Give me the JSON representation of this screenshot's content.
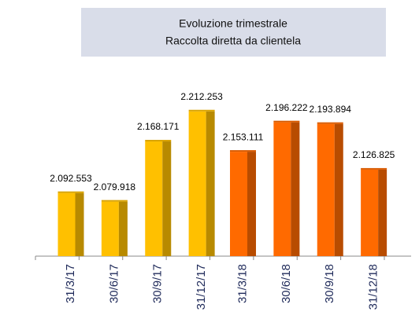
{
  "chart_data": {
    "type": "bar",
    "title": "Evoluzione trimestrale",
    "subtitle": "Raccolta diretta da clientela",
    "categories": [
      "31/3/17",
      "30/6/17",
      "30/9/17",
      "31/12/17",
      "31/3/18",
      "30/6/18",
      "30/9/18",
      "31/12/18"
    ],
    "values": [
      2092553,
      2079918,
      2168171,
      2212253,
      2153111,
      2196222,
      2193894,
      2126825
    ],
    "value_labels": [
      "2.092.553",
      "2.079.918",
      "2.168.171",
      "2.212.253",
      "2.153.111",
      "2.196.222",
      "2.193.894",
      "2.126.825"
    ],
    "colors": [
      "#ffc000",
      "#ffc000",
      "#ffc000",
      "#ffc000",
      "#ff6a00",
      "#ff6a00",
      "#ff6a00",
      "#ff6a00"
    ],
    "ylim": [
      2000000,
      2250000
    ]
  }
}
